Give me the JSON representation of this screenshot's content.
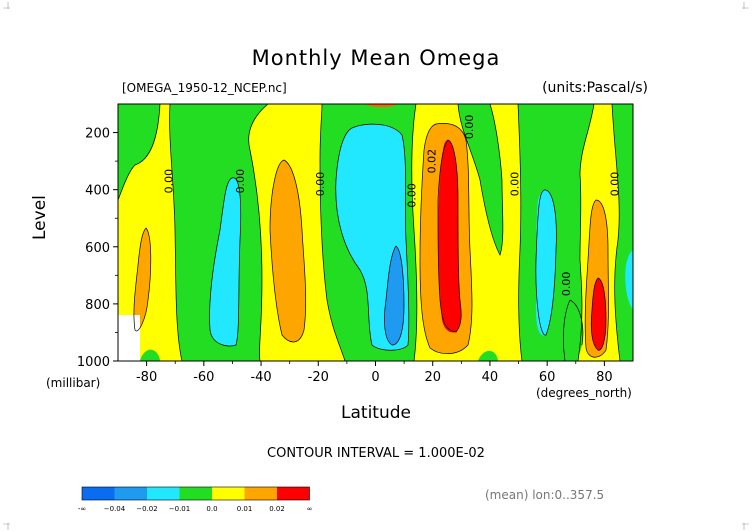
{
  "header": {
    "title": "Monthly Mean Omega",
    "file": "[OMEGA_1950-12_NCEP.nc]",
    "units": "(units:Pascal/s)"
  },
  "footer": {
    "contour_interval": "CONTOUR INTERVAL = 1.000E-02",
    "mean_note": "(mean) lon:0..357.5"
  },
  "chart_data": {
    "type": "heatmap",
    "title": "Monthly Mean Omega",
    "xlabel": "Latitude",
    "ylabel": "Level",
    "x_unit_label": "(degrees_north)",
    "y_unit_label": "(millibar)",
    "xlim": [
      -90,
      90
    ],
    "ylim": [
      1000,
      100
    ],
    "x_ticks": [
      -80,
      -60,
      -40,
      -20,
      0,
      20,
      40,
      60,
      80
    ],
    "y_ticks": [
      200,
      400,
      600,
      800,
      1000
    ],
    "colorbar": {
      "levels": [
        "-∞",
        "−0.04",
        "−0.02",
        "−0.01",
        "0.0",
        "0.01",
        "0.02",
        "∞"
      ],
      "colors": [
        "#0a6cf0",
        "#1e9bf0",
        "#22e8ff",
        "#22dd22",
        "#ffff00",
        "#ffa500",
        "#ff0000"
      ]
    },
    "contour_labels": [
      {
        "text": "0.00",
        "lat": -71,
        "level": 370
      },
      {
        "text": "0.00",
        "lat": -46,
        "level": 370
      },
      {
        "text": "0.00",
        "lat": -18,
        "level": 380
      },
      {
        "text": "0.00",
        "lat": 14,
        "level": 420
      },
      {
        "text": "0.02",
        "lat": 21,
        "level": 300
      },
      {
        "text": "0.00",
        "lat": 34,
        "level": 180
      },
      {
        "text": "0.00",
        "lat": 50,
        "level": 380
      },
      {
        "text": "0.00",
        "lat": 68,
        "level": 730
      },
      {
        "text": "0.00",
        "lat": 85,
        "level": 380
      }
    ],
    "regions": [
      {
        "name": "subsidence-southern-subtropics",
        "value": 0.01,
        "lat": -32,
        "level_top": 230,
        "level_bottom": 870
      },
      {
        "name": "ascent-southern-midlatitudes",
        "value": -0.01,
        "lat": -50,
        "level_top": 380,
        "level_bottom": 920
      },
      {
        "name": "ascent-equatorial-upper",
        "value": -0.01,
        "lat": -10,
        "level_top": 170,
        "level_bottom": 800
      },
      {
        "name": "ascent-equatorial-lower",
        "value": -0.02,
        "lat": 6,
        "level_top": 600,
        "level_bottom": 940
      },
      {
        "name": "subsidence-northern-subtropics",
        "value": 0.02,
        "lat": 26,
        "level_top": 200,
        "level_bottom": 880
      },
      {
        "name": "ascent-northern-midlatitudes",
        "value": -0.01,
        "lat": 56,
        "level_top": 400,
        "level_bottom": 880
      },
      {
        "name": "subsidence-northern-high-latitudes",
        "value": 0.02,
        "lat": 81,
        "level_top": 710,
        "level_bottom": 960
      }
    ]
  }
}
